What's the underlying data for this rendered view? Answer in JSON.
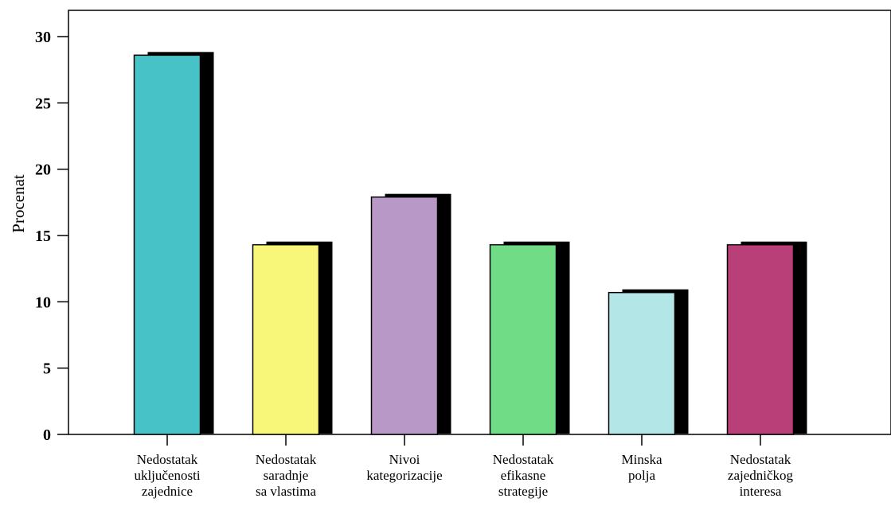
{
  "chart_data": {
    "type": "bar",
    "title": "",
    "xlabel": "",
    "ylabel": "Procenat",
    "ylim": [
      0,
      32
    ],
    "yticks": [
      0,
      5,
      10,
      15,
      20,
      25,
      30
    ],
    "grid": false,
    "legend": "none",
    "categories": [
      [
        "Nedostatak",
        "uključenosti",
        "zajednice"
      ],
      [
        "Nedostatak",
        "saradnje",
        "sa vlastima"
      ],
      [
        "Nivoi",
        "kategorizacije"
      ],
      [
        "Nedostatak",
        "efikasne",
        "strategije"
      ],
      [
        "Minska",
        "polja"
      ],
      [
        "Nedostatak",
        "zajedničkog",
        "interesa"
      ]
    ],
    "values": [
      28.6,
      14.3,
      17.9,
      14.3,
      10.7,
      14.3
    ],
    "colors": [
      "#47c3c7",
      "#f8f77a",
      "#b898c7",
      "#70dd86",
      "#b3e6e6",
      "#b93f79"
    ],
    "shadow_color": "#000000"
  }
}
